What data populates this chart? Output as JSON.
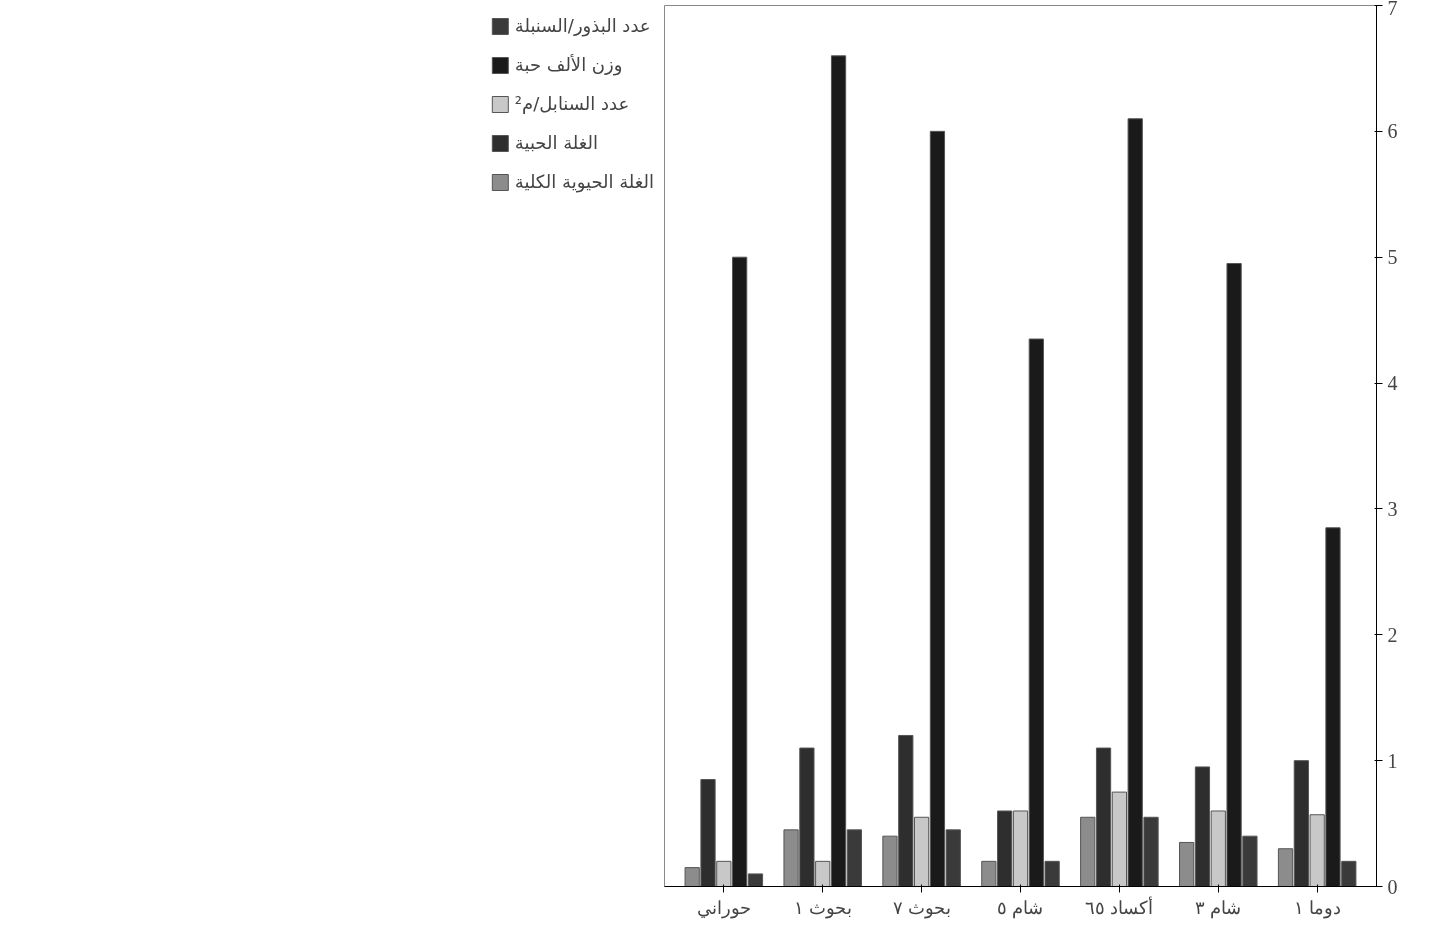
{
  "chart_data": {
    "type": "bar",
    "categories": [
      "حوراني",
      "بحوث ١",
      "بحوث ٧",
      "شام ٥",
      "أكساد ٦٥",
      "شام ٣",
      "دوما ١"
    ],
    "series": [
      {
        "name": "الغلة الحيوية الكلية",
        "color": "#8c8c8c",
        "values": [
          0.15,
          0.45,
          0.4,
          0.2,
          0.55,
          0.35,
          0.3
        ]
      },
      {
        "name": "الغلة الحبية",
        "color": "#2e2e2e",
        "values": [
          0.85,
          1.1,
          1.2,
          0.6,
          1.1,
          0.95,
          1.0
        ]
      },
      {
        "name": "عدد السنابل/م²",
        "color": "#c8c8c8",
        "values": [
          0.2,
          0.2,
          0.55,
          0.6,
          0.75,
          0.6,
          0.57
        ]
      },
      {
        "name": "وزن الألف حبة",
        "color": "#1a1a1a",
        "values": [
          5.0,
          6.6,
          6.0,
          4.35,
          6.1,
          4.95,
          2.85
        ]
      },
      {
        "name": "عدد البذور/السنبلة",
        "color": "#3a3a3a",
        "values": [
          0.1,
          0.45,
          0.45,
          0.2,
          0.55,
          0.4,
          0.2
        ]
      }
    ],
    "ylim": [
      0,
      7
    ],
    "yticks": [
      0,
      1,
      2,
      3,
      4,
      5,
      6,
      7
    ],
    "grid": false,
    "legend": "left"
  }
}
